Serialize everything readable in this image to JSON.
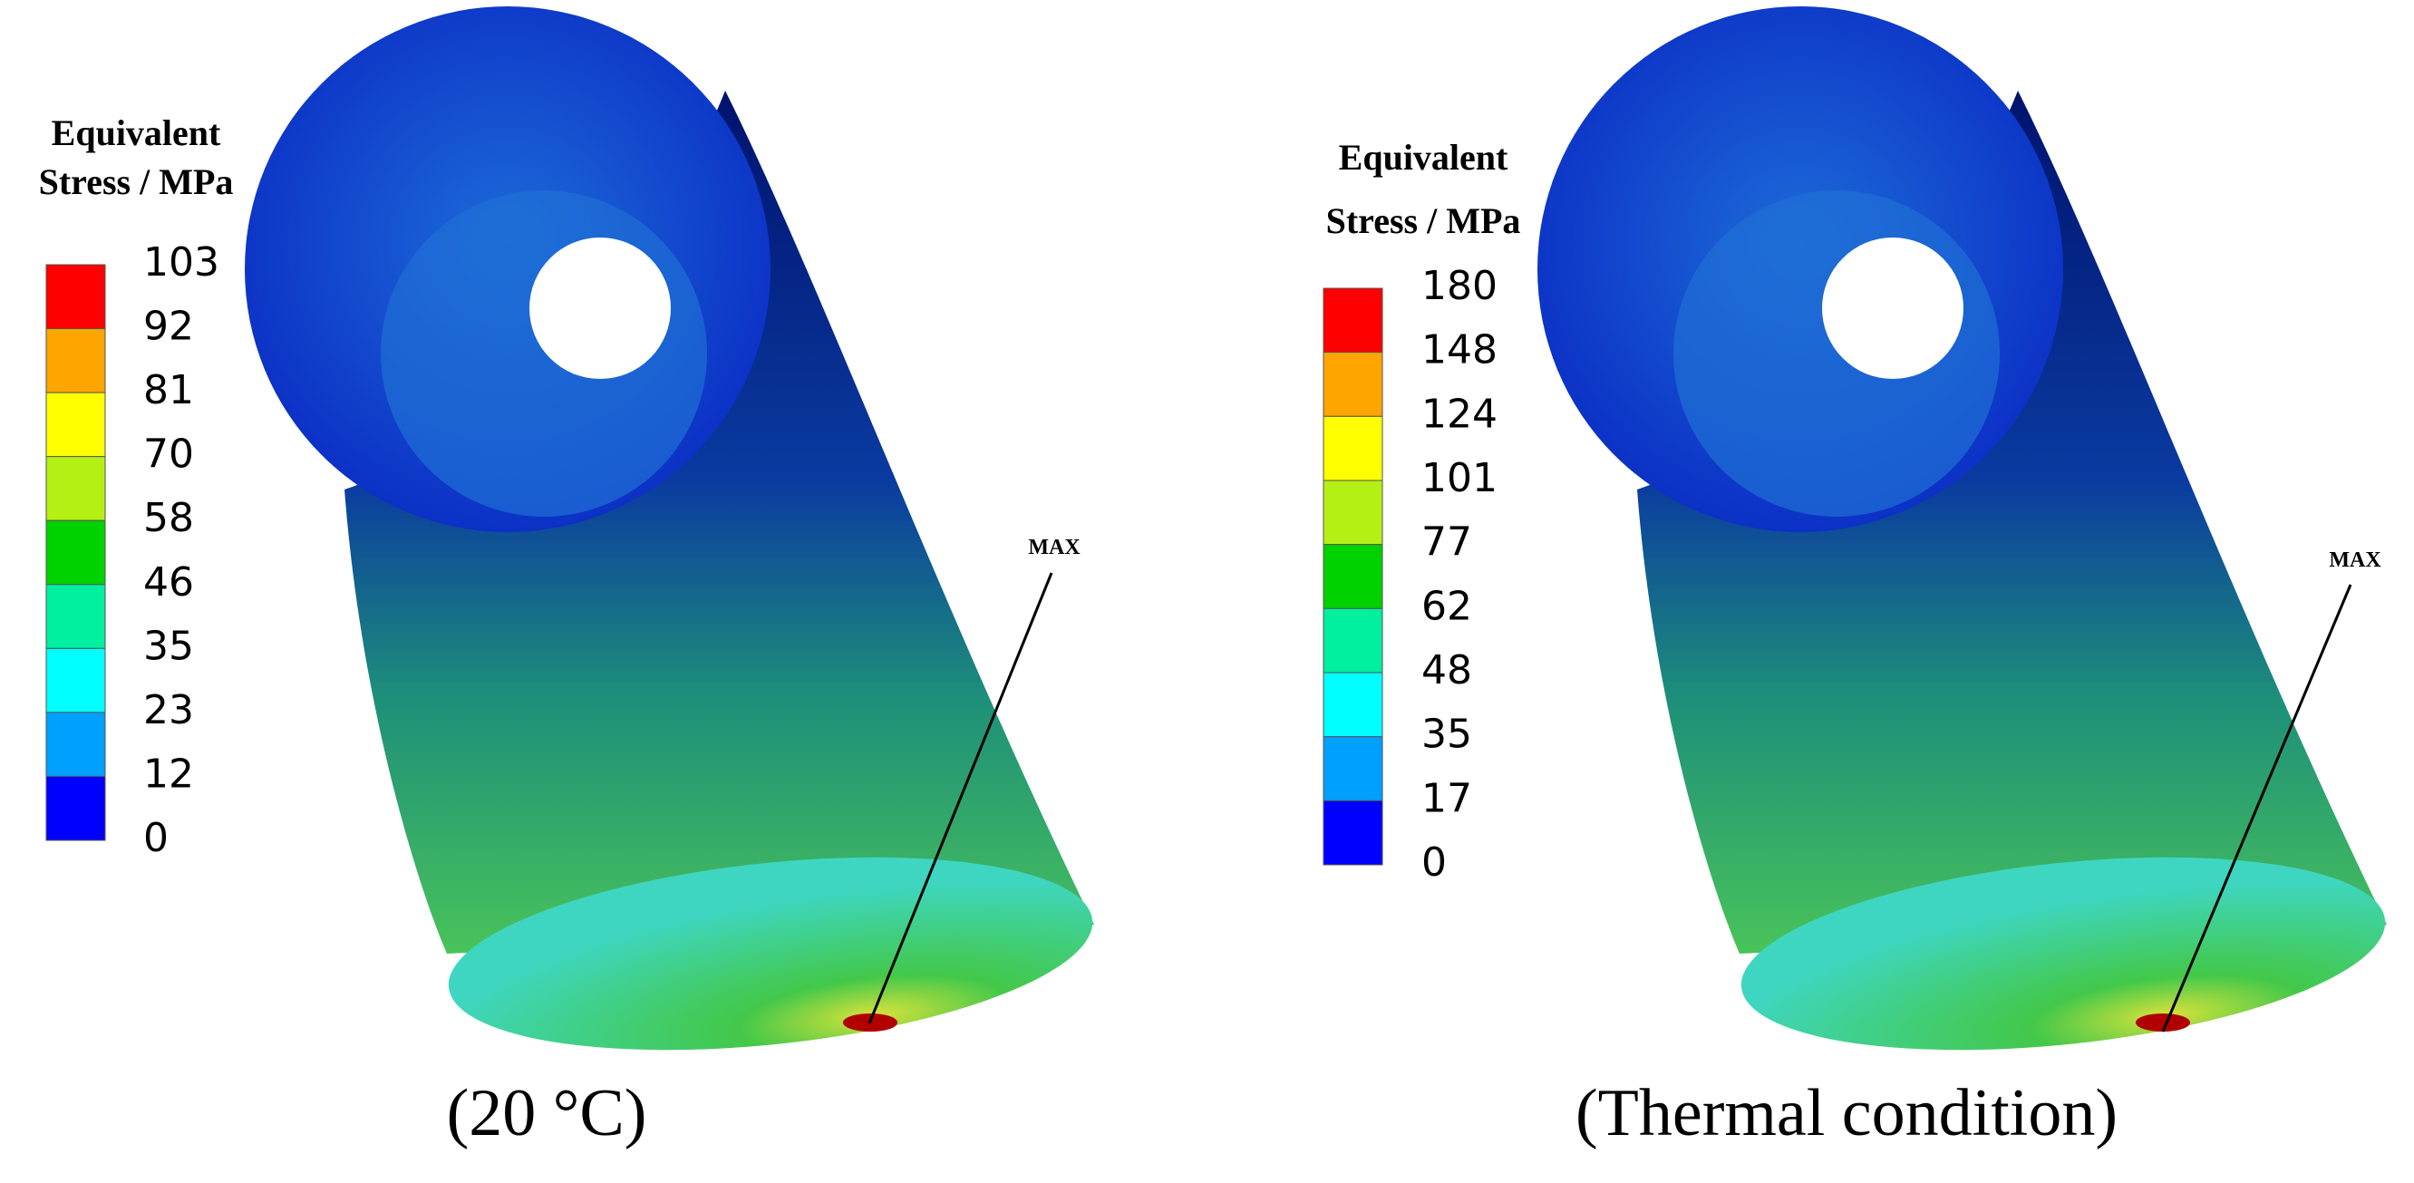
{
  "panels": [
    {
      "legend": {
        "title_lines": [
          "Equivalent",
          "Stress / MPa"
        ],
        "levels": [
          103,
          92,
          81,
          70,
          58,
          46,
          35,
          23,
          12,
          0
        ]
      },
      "annotation": "MAX",
      "caption": "(20 °C)"
    },
    {
      "legend": {
        "title_lines": [
          "Equivalent",
          "Stress / MPa"
        ],
        "levels": [
          180,
          148,
          124,
          101,
          77,
          62,
          48,
          35,
          17,
          0
        ]
      },
      "annotation": "MAX",
      "caption": "(Thermal condition)"
    }
  ]
}
